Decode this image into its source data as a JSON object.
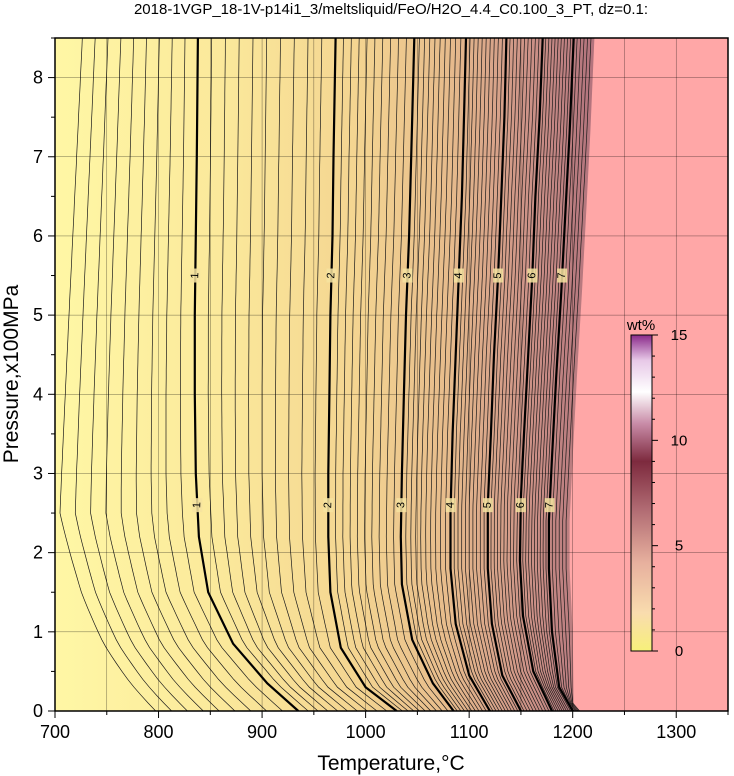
{
  "chart_data": {
    "type": "heatmap",
    "title": "2018-1VGP_18-1V-p14i1_3/meltsliquid/FeO/H2O_4.4_C0.100_3_PT, dz=0.1:",
    "xlabel": "Temperature,°C",
    "ylabel": "Pressure,x100MPa",
    "xlim": [
      700,
      1350
    ],
    "ylim": [
      0,
      8.5
    ],
    "x_ticks": [
      700,
      800,
      900,
      1000,
      1100,
      1200,
      1300
    ],
    "y_ticks": [
      0,
      1,
      2,
      3,
      4,
      5,
      6,
      7,
      8
    ],
    "grid": true,
    "contour_interval": 0.1,
    "major_contours": [
      {
        "level": "1",
        "points": [
          [
            935,
            0
          ],
          [
            905,
            0.35
          ],
          [
            872,
            0.85
          ],
          [
            848,
            1.5
          ],
          [
            839,
            2.2
          ],
          [
            836,
            3
          ],
          [
            835,
            4
          ],
          [
            835,
            5
          ],
          [
            836,
            6
          ],
          [
            837,
            7
          ],
          [
            838,
            8.5
          ]
        ]
      },
      {
        "level": "2",
        "points": [
          [
            1030,
            0
          ],
          [
            1000,
            0.3
          ],
          [
            976,
            0.8
          ],
          [
            966,
            1.5
          ],
          [
            964,
            2.2
          ],
          [
            964,
            3
          ],
          [
            965,
            4
          ],
          [
            966,
            5
          ],
          [
            968,
            6
          ],
          [
            969,
            7
          ],
          [
            971,
            8.5
          ]
        ]
      },
      {
        "level": "3",
        "points": [
          [
            1085,
            0
          ],
          [
            1065,
            0.35
          ],
          [
            1045,
            0.9
          ],
          [
            1035,
            1.6
          ],
          [
            1034,
            2.2
          ],
          [
            1035,
            3
          ],
          [
            1037,
            4
          ],
          [
            1039,
            5
          ],
          [
            1042,
            6
          ],
          [
            1044,
            7
          ],
          [
            1047,
            8.5
          ]
        ]
      },
      {
        "level": "4",
        "points": [
          [
            1120,
            0
          ],
          [
            1100,
            0.45
          ],
          [
            1087,
            1.1
          ],
          [
            1082,
            1.8
          ],
          [
            1082,
            2.5
          ],
          [
            1084,
            3.5
          ],
          [
            1087,
            4.5
          ],
          [
            1090,
            5.5
          ],
          [
            1093,
            6.5
          ],
          [
            1095,
            7.5
          ],
          [
            1097,
            8.5
          ]
        ]
      },
      {
        "level": "5",
        "points": [
          [
            1150,
            0
          ],
          [
            1132,
            0.45
          ],
          [
            1122,
            1.1
          ],
          [
            1118,
            1.8
          ],
          [
            1118,
            2.6
          ],
          [
            1121,
            3.5
          ],
          [
            1124,
            4.5
          ],
          [
            1128,
            5.5
          ],
          [
            1131,
            6.5
          ],
          [
            1134,
            7.5
          ],
          [
            1136,
            8.5
          ]
        ]
      },
      {
        "level": "6",
        "points": [
          [
            1180,
            0
          ],
          [
            1162,
            0.5
          ],
          [
            1152,
            1.2
          ],
          [
            1149,
            1.9
          ],
          [
            1150,
            2.7
          ],
          [
            1153,
            3.5
          ],
          [
            1157,
            4.5
          ],
          [
            1161,
            5.5
          ],
          [
            1164,
            6.5
          ],
          [
            1168,
            7.5
          ],
          [
            1171,
            8.5
          ]
        ]
      },
      {
        "level": "7",
        "points": [
          [
            1200,
            0
          ],
          [
            1187,
            0.3
          ],
          [
            1180,
            1
          ],
          [
            1177,
            1.8
          ],
          [
            1177,
            2.4
          ],
          [
            1180,
            3.2
          ],
          [
            1184,
            4.2
          ],
          [
            1189,
            5.3
          ],
          [
            1193,
            6.3
          ],
          [
            1197,
            7.3
          ],
          [
            1201,
            8.5
          ]
        ]
      }
    ],
    "saturation_boundary_temperature": [
      [
        1208,
        0
      ],
      [
        1201,
        0.05
      ],
      [
        1200,
        1
      ],
      [
        1197,
        1.8
      ],
      [
        1197,
        2.4
      ],
      [
        1200,
        3.2
      ],
      [
        1204,
        4.2
      ],
      [
        1209,
        5.3
      ],
      [
        1213,
        6.3
      ],
      [
        1217,
        7.3
      ],
      [
        1221,
        8.5
      ]
    ],
    "colorbar": {
      "title": "wt%",
      "min": 0,
      "max": 15,
      "ticks": [
        0,
        5,
        10,
        15
      ],
      "colors": [
        "#f7f07a",
        "#f9dcae",
        "#e7b09e",
        "#b06a72",
        "#7d2a3e",
        "#c98ca8",
        "#ffffff",
        "#e7c8e7",
        "#8a2a8a"
      ]
    },
    "colors": {
      "background_low": "#fff7a5",
      "background_high": "#b8777f",
      "saturated": "#ffa7a7"
    }
  }
}
